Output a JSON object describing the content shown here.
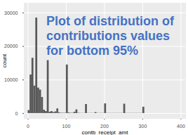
{
  "chart_data": {
    "type": "histogram",
    "title": "Plot of distribution of contributions values for bottom 95%",
    "x_label": "contb_receipt_amt",
    "y_label": "count",
    "bins": [
      0,
      5,
      10,
      15,
      20,
      25,
      30,
      35,
      40,
      45,
      50,
      55,
      60,
      65,
      70,
      75,
      80,
      85,
      90,
      95,
      100,
      105,
      110,
      115,
      120,
      125,
      130,
      135,
      140,
      145,
      150,
      155,
      160,
      165,
      170,
      175,
      180,
      185,
      190,
      195,
      200,
      205,
      210,
      215,
      220,
      225,
      230,
      235,
      240,
      245,
      250,
      255,
      260,
      265,
      270,
      275,
      280,
      285,
      290,
      295,
      300,
      305
    ],
    "values": [
      900,
      11500,
      16500,
      8200,
      28500,
      7600,
      7000,
      4800,
      1000,
      600,
      15800,
      400,
      600,
      300,
      500,
      1400,
      200,
      100,
      100,
      100,
      14500,
      200,
      100,
      100,
      400,
      1100,
      100,
      50,
      50,
      50,
      2700,
      50,
      50,
      50,
      50,
      300,
      50,
      50,
      50,
      50,
      2900,
      50,
      50,
      50,
      50,
      50,
      50,
      50,
      50,
      50,
      2800,
      50,
      50,
      50,
      50,
      50,
      50,
      50,
      50,
      50,
      1900
    ],
    "color": "#595959",
    "xlim": [
      -10,
      412
    ],
    "ylim": [
      -1500,
      32900
    ],
    "xticks": [
      0,
      100,
      200,
      300,
      400
    ],
    "yticks": [
      0,
      10000,
      20000,
      30000
    ],
    "grid": true
  }
}
